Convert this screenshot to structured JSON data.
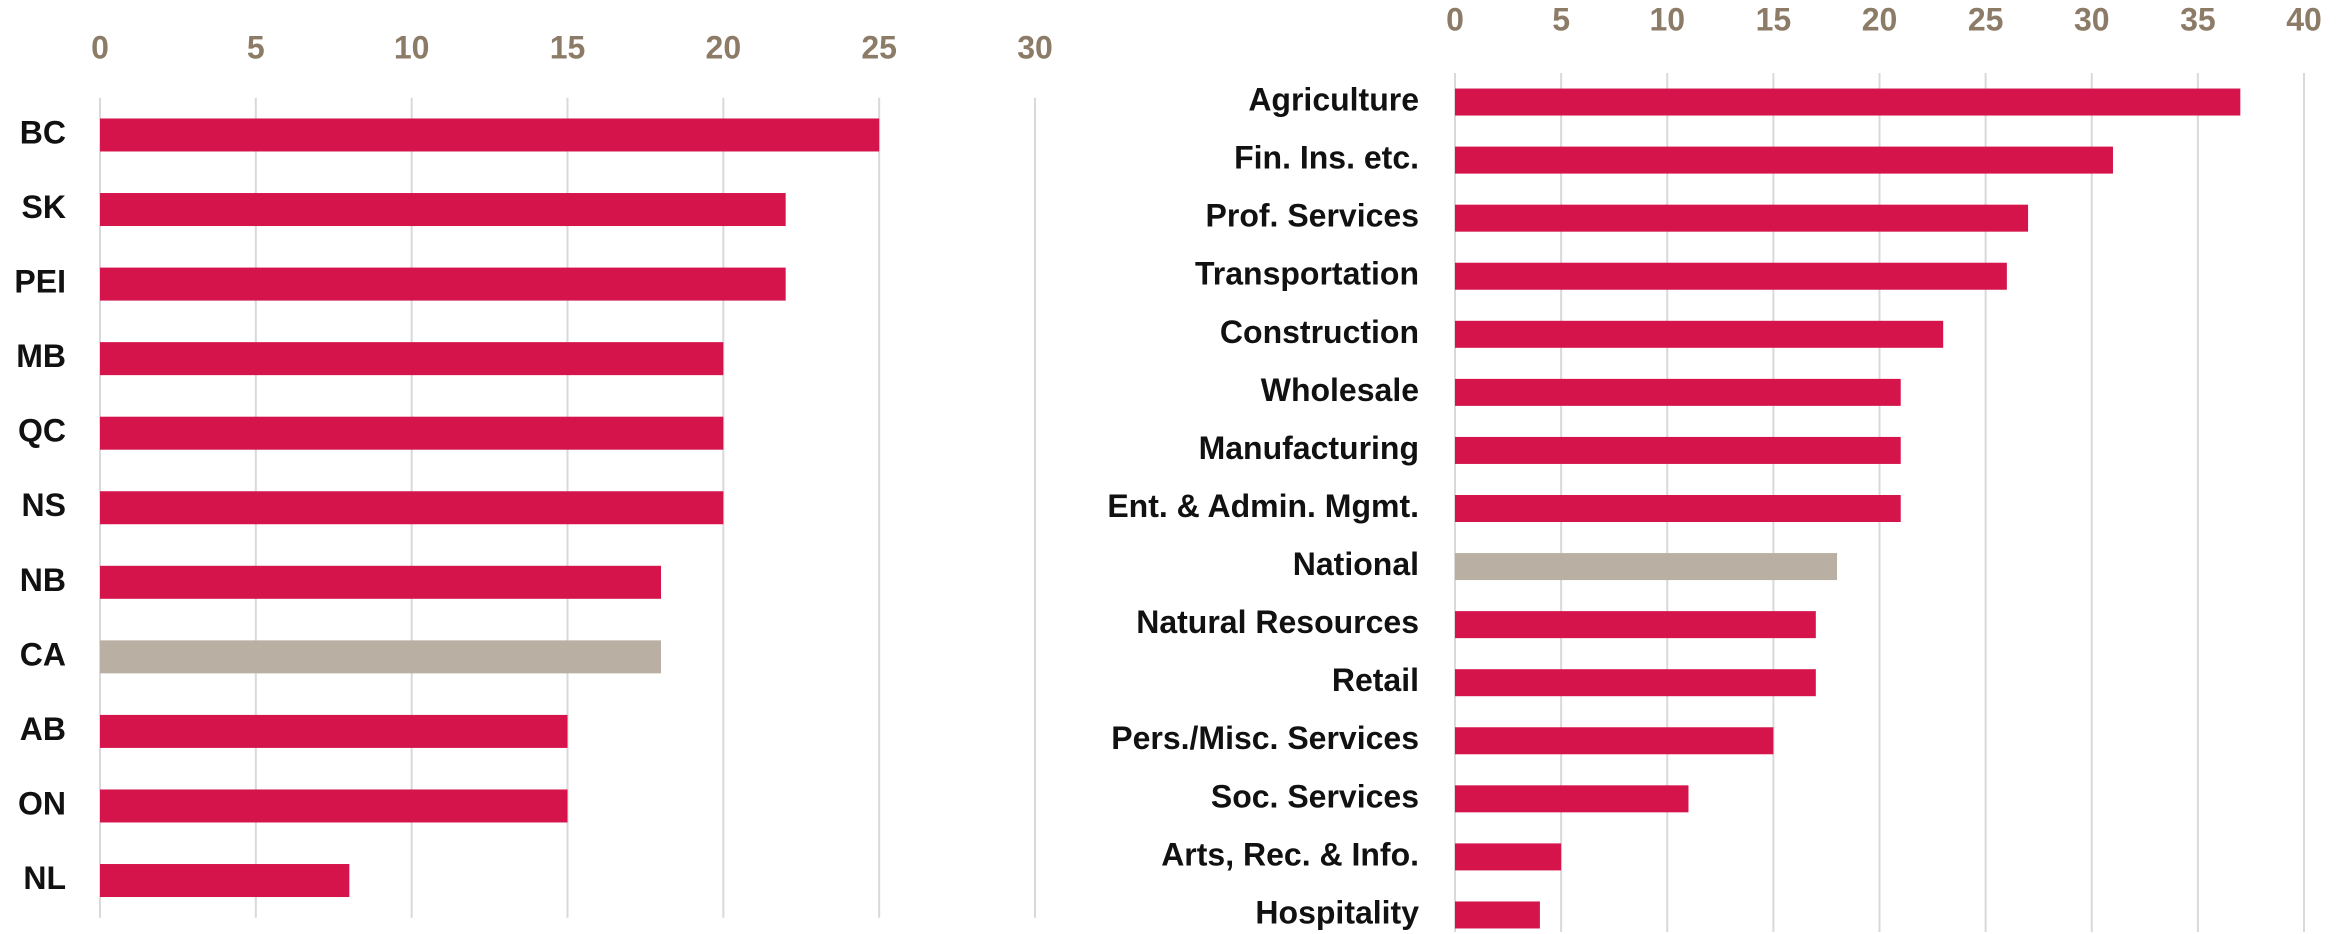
{
  "chart_data": [
    {
      "type": "bar",
      "orientation": "horizontal",
      "categories": [
        "BC",
        "SK",
        "PEI",
        "MB",
        "QC",
        "NS",
        "NB",
        "CA",
        "AB",
        "ON",
        "NL"
      ],
      "values": [
        25,
        22,
        22,
        20,
        20,
        20,
        18,
        18,
        15,
        15,
        8
      ],
      "colors": [
        "#d4144a",
        "#d4144a",
        "#d4144a",
        "#d4144a",
        "#d4144a",
        "#d4144a",
        "#d4144a",
        "#b9afa3",
        "#d4144a",
        "#d4144a",
        "#d4144a"
      ],
      "xlim": [
        0,
        30
      ],
      "xticks": [
        0,
        5,
        10,
        15,
        20,
        25,
        30
      ],
      "grid": true
    },
    {
      "type": "bar",
      "orientation": "horizontal",
      "categories": [
        "Agriculture",
        "Fin. Ins. etc.",
        "Prof. Services",
        "Transportation",
        "Construction",
        "Wholesale",
        "Manufacturing",
        "Ent. & Admin. Mgmt.",
        "National",
        "Natural Resources",
        "Retail",
        "Pers./Misc. Services",
        "Soc. Services",
        "Arts, Rec. & Info.",
        "Hospitality"
      ],
      "values": [
        37,
        31,
        27,
        26,
        23,
        21,
        21,
        21,
        18,
        17,
        17,
        15,
        11,
        5,
        4
      ],
      "colors": [
        "#d4144a",
        "#d4144a",
        "#d4144a",
        "#d4144a",
        "#d4144a",
        "#d4144a",
        "#d4144a",
        "#d4144a",
        "#b9afa3",
        "#d4144a",
        "#d4144a",
        "#d4144a",
        "#d4144a",
        "#d4144a",
        "#d4144a"
      ],
      "xlim": [
        0,
        40
      ],
      "xticks": [
        0,
        5,
        10,
        15,
        20,
        25,
        30,
        35,
        40
      ],
      "grid": true
    }
  ]
}
